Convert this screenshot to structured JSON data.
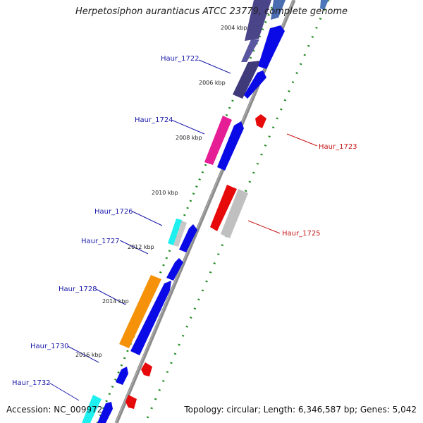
{
  "title": "Herpetosiphon aurantiacus ATCC 23779, complete genome",
  "accession": "Accession: NC_009972",
  "summary": "Topology: circular; Length: 6,346,587 bp; Genes: 5,042",
  "scale_labels": [
    "2004 kbp",
    "2006 kbp",
    "2008 kbp",
    "2010 kbp",
    "2012 kbp",
    "2014 kbp",
    "2016 kbp"
  ],
  "colors": {
    "backbone": "#8c8c8c",
    "forward_gene": "#0a0ae6",
    "reverse_gene": "#e60a0a",
    "gc_tick": "#1f8a1f",
    "label_forward": "#1a1aaa",
    "label_reverse": "#c81414"
  },
  "genes": [
    {
      "label": "Haur_1722",
      "strand": "forward"
    },
    {
      "label": "Haur_1723",
      "strand": "reverse"
    },
    {
      "label": "Haur_1724",
      "strand": "forward"
    },
    {
      "label": "Haur_1725",
      "strand": "reverse"
    },
    {
      "label": "Haur_1726",
      "strand": "forward"
    },
    {
      "label": "Haur_1727",
      "strand": "forward"
    },
    {
      "label": "Haur_1728",
      "strand": "forward"
    },
    {
      "label": "Haur_1730",
      "strand": "forward"
    },
    {
      "label": "Haur_1732",
      "strand": "forward"
    }
  ]
}
